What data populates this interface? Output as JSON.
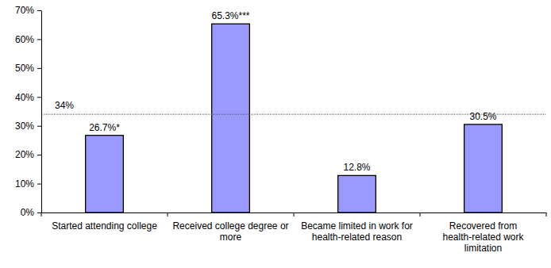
{
  "chart_data": {
    "type": "bar",
    "categories": [
      "Started attending college",
      "Received college degree or more",
      "Became limited in work for health-related reason",
      "Recovered from health-related work limitation"
    ],
    "values": [
      26.7,
      65.3,
      12.8,
      30.5
    ],
    "value_labels": [
      "26.7%*",
      "65.3%***",
      "12.8%",
      "30.5%"
    ],
    "data_labels": true,
    "color": "#9999ff",
    "grid": false,
    "ylim": [
      0,
      70
    ],
    "yticks": [
      {
        "value": 0,
        "label": "0%"
      },
      {
        "value": 10,
        "label": "10%"
      },
      {
        "value": 20,
        "label": "20%"
      },
      {
        "value": 30,
        "label": "30%"
      },
      {
        "value": 40,
        "label": "40%"
      },
      {
        "value": 50,
        "label": "50%"
      },
      {
        "value": 60,
        "label": "60%"
      },
      {
        "value": 70,
        "label": "70%"
      }
    ],
    "annotations": [
      {
        "value": 34,
        "label": "34%"
      }
    ]
  }
}
